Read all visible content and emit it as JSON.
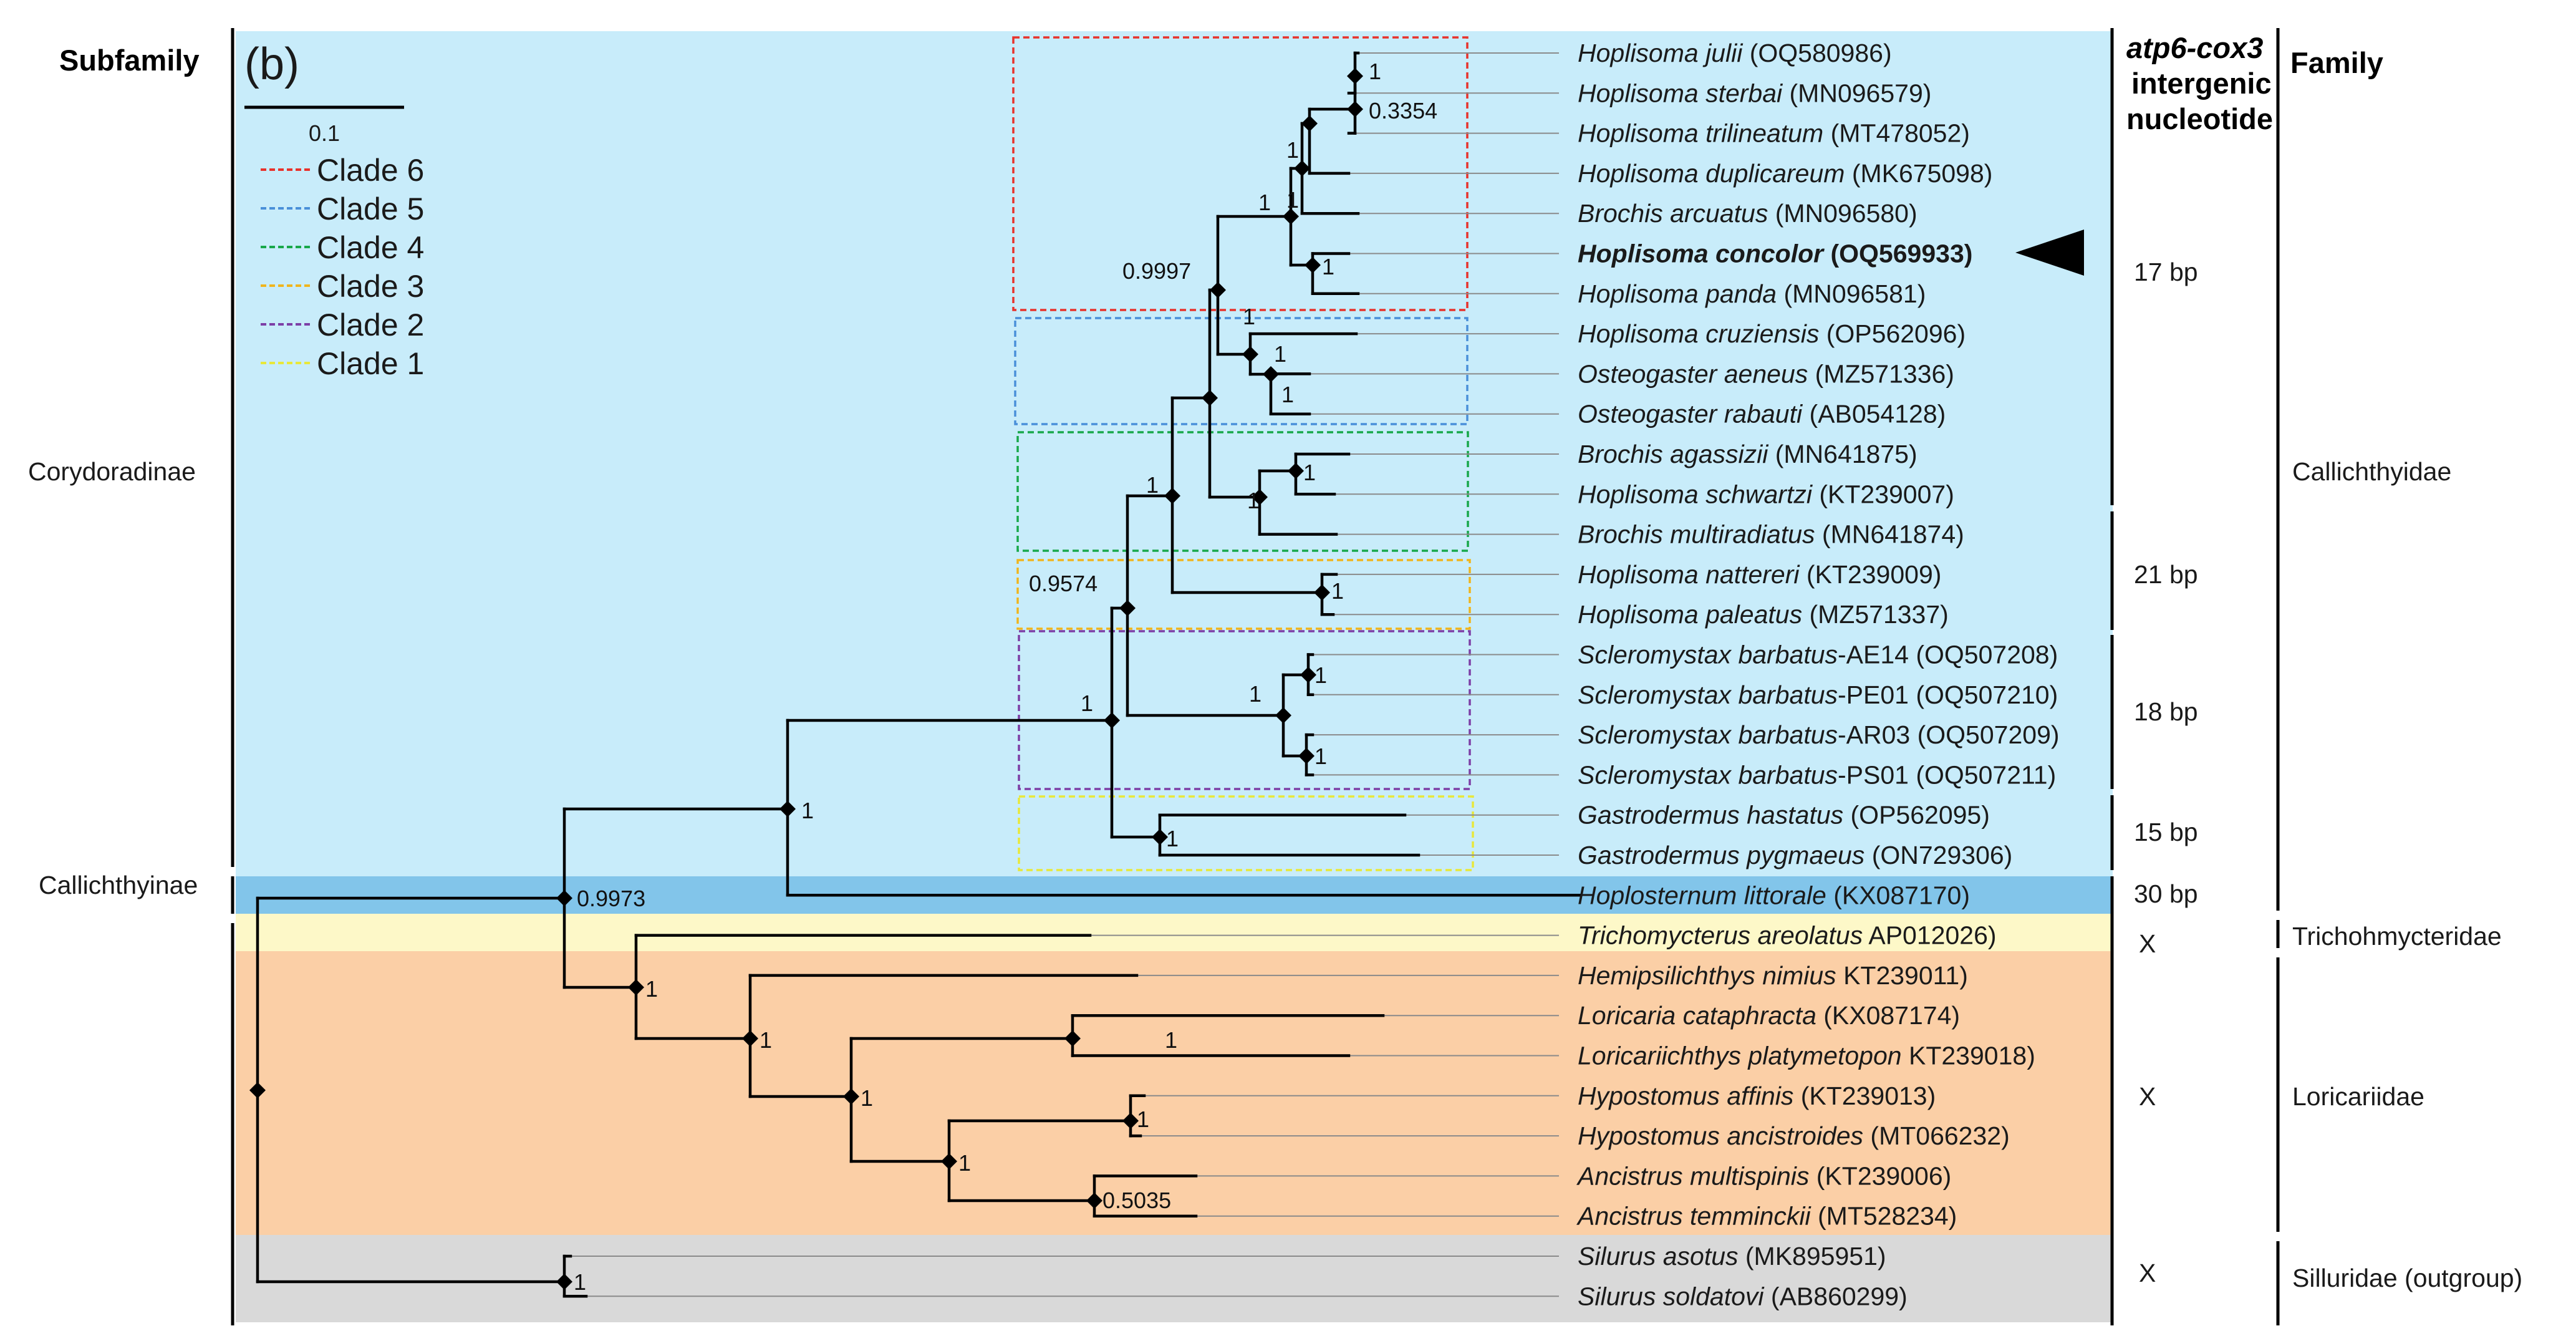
{
  "headers": {
    "subfamily": "Subfamily",
    "panel_label": "(b)",
    "intergenic_line1": "atp6-cox3",
    "intergenic_line2": "intergenic",
    "intergenic_line3": "nucleotide",
    "family": "Family"
  },
  "scale_bar": {
    "label": "0.1"
  },
  "legend": [
    {
      "label": "Clade 6",
      "color": "#e8322b"
    },
    {
      "label": "Clade 5",
      "color": "#4a90d9"
    },
    {
      "label": "Clade 4",
      "color": "#18a84a"
    },
    {
      "label": "Clade 3",
      "color": "#f0b51d"
    },
    {
      "label": "Clade 2",
      "color": "#7d3fa6"
    },
    {
      "label": "Clade 1",
      "color": "#e8e83a"
    }
  ],
  "band_colors": {
    "corydoradinae": "#c8ecfa",
    "callichthyinae": "#82c5ea",
    "trichomycteridae": "#fdf8c8",
    "loricariidae": "#fbcfa6",
    "siluridae": "#d9d9d9"
  },
  "subfamilies": [
    {
      "label": "Corydoradinae"
    },
    {
      "label": "Callichthyinae"
    }
  ],
  "taxa": [
    {
      "genus": "Hoplisoma",
      "epithet": "julii",
      "accession": "(OQ580986)",
      "bold": false
    },
    {
      "genus": "Hoplisoma",
      "epithet": "sterbai",
      "accession": "(MN096579)",
      "bold": false
    },
    {
      "genus": "Hoplisoma",
      "epithet": "trilineatum",
      "accession": "(MT478052)",
      "bold": false
    },
    {
      "genus": "Hoplisoma",
      "epithet": "duplicareum",
      "accession": "(MK675098)",
      "bold": false
    },
    {
      "genus": "Brochis",
      "epithet": "arcuatus",
      "accession": "(MN096580)",
      "bold": false
    },
    {
      "genus": "Hoplisoma",
      "epithet": "concolor",
      "accession": "(OQ569933)",
      "bold": true
    },
    {
      "genus": "Hoplisoma",
      "epithet": "panda",
      "accession": "(MN096581)",
      "bold": false
    },
    {
      "genus": "Hoplisoma",
      "epithet": "cruziensis",
      "accession": "(OP562096)",
      "bold": false
    },
    {
      "genus": "Osteogaster",
      "epithet": "aeneus",
      "accession": "(MZ571336)",
      "bold": false
    },
    {
      "genus": "Osteogaster",
      "epithet": "rabauti",
      "accession": "(AB054128)",
      "bold": false
    },
    {
      "genus": "Brochis",
      "epithet": "agassizii",
      "accession": "(MN641875)",
      "bold": false
    },
    {
      "genus": "Hoplisoma",
      "epithet": "schwartzi",
      "accession": "(KT239007)",
      "bold": false
    },
    {
      "genus": "Brochis",
      "epithet": "multiradiatus",
      "accession": "(MN641874)",
      "bold": false
    },
    {
      "genus": "Hoplisoma",
      "epithet": "nattereri",
      "accession": "(KT239009)",
      "bold": false
    },
    {
      "genus": "Hoplisoma",
      "epithet": "paleatus",
      "accession": "(MZ571337)",
      "bold": false
    },
    {
      "genus": "Scleromystax",
      "epithet": "barbatus",
      "accession": "-AE14 (OQ507208)",
      "bold": false
    },
    {
      "genus": "Scleromystax",
      "epithet": "barbatus",
      "accession": "-PE01 (OQ507210)",
      "bold": false
    },
    {
      "genus": "Scleromystax",
      "epithet": "barbatus",
      "accession": "-AR03 (OQ507209)",
      "bold": false
    },
    {
      "genus": "Scleromystax",
      "epithet": "barbatus",
      "accession": "-PS01 (OQ507211)",
      "bold": false
    },
    {
      "genus": "Gastrodermus",
      "epithet": "hastatus",
      "accession": "(OP562095)",
      "bold": false
    },
    {
      "genus": "Gastrodermus",
      "epithet": "pygmaeus",
      "accession": "(ON729306)",
      "bold": false
    },
    {
      "genus": "Hoplosternum",
      "epithet": "littorale",
      "accession": "(KX087170)",
      "bold": false
    },
    {
      "genus": "Trichomycterus",
      "epithet": "areolatus",
      "accession": "AP012026)",
      "bold": false
    },
    {
      "genus": "Hemipsilichthys",
      "epithet": "nimius",
      "accession": "KT239011)",
      "bold": false
    },
    {
      "genus": "Loricaria",
      "epithet": "cataphracta",
      "accession": "(KX087174)",
      "bold": false
    },
    {
      "genus": "Loricariichthys",
      "epithet": "platymetopon",
      "accession": "KT239018)",
      "bold": false
    },
    {
      "genus": "Hypostomus",
      "epithet": "affinis",
      "accession": "(KT239013)",
      "bold": false
    },
    {
      "genus": "Hypostomus",
      "epithet": "ancistroides",
      "accession": "(MT066232)",
      "bold": false
    },
    {
      "genus": "Ancistrus",
      "epithet": "multispinis",
      "accession": "(KT239006)",
      "bold": false
    },
    {
      "genus": "Ancistrus",
      "epithet": "temminckii",
      "accession": "(MT528234)",
      "bold": false
    },
    {
      "genus": "Silurus",
      "epithet": "asotus",
      "accession": "(MK895951)",
      "bold": false
    },
    {
      "genus": "Silurus",
      "epithet": "soldatovi",
      "accession": "(AB860299)",
      "bold": false
    }
  ],
  "intergenic": [
    {
      "label": "17 bp"
    },
    {
      "label": "21 bp"
    },
    {
      "label": "18 bp"
    },
    {
      "label": "15 bp"
    },
    {
      "label": "30 bp"
    },
    {
      "label": "X"
    },
    {
      "label": "X"
    },
    {
      "label": "X"
    }
  ],
  "families": [
    {
      "label": "Callichthyidae"
    },
    {
      "label": "Trichohmycteridae"
    },
    {
      "label": "Loricariidae"
    },
    {
      "label": "Silluridae (outgroup)"
    }
  ],
  "support_values": [
    {
      "label": "1"
    },
    {
      "label": "0.3354"
    },
    {
      "label": "1"
    },
    {
      "label": "1"
    },
    {
      "label": "1"
    },
    {
      "label": "1"
    },
    {
      "label": "0.9997"
    },
    {
      "label": "1"
    },
    {
      "label": "1"
    },
    {
      "label": "1"
    },
    {
      "label": "1"
    },
    {
      "label": "1"
    },
    {
      "label": "1"
    },
    {
      "label": "0.9574"
    },
    {
      "label": "1"
    },
    {
      "label": "1"
    },
    {
      "label": "1"
    },
    {
      "label": "1"
    },
    {
      "label": "1"
    },
    {
      "label": "1"
    },
    {
      "label": "1"
    },
    {
      "label": "0.9973"
    },
    {
      "label": "1"
    },
    {
      "label": "1"
    },
    {
      "label": "1"
    },
    {
      "label": "1"
    },
    {
      "label": "1"
    },
    {
      "label": "1"
    },
    {
      "label": "0.5035"
    },
    {
      "label": "1"
    }
  ]
}
